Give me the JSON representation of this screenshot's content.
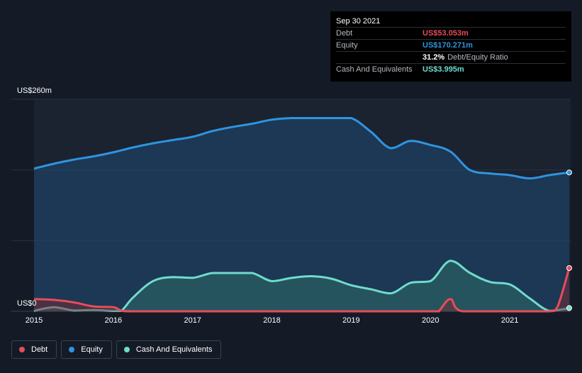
{
  "tooltip": {
    "date": "Sep 30 2021",
    "debt_label": "Debt",
    "debt_value": "US$53.053m",
    "equity_label": "Equity",
    "equity_value": "US$170.271m",
    "ratio_value": "31.2%",
    "ratio_label": "Debt/Equity Ratio",
    "cash_label": "Cash And Equivalents",
    "cash_value": "US$3.995m"
  },
  "legend": [
    {
      "label": "Debt",
      "color": "#e64d5a"
    },
    {
      "label": "Equity",
      "color": "#2f94e0"
    },
    {
      "label": "Cash And Equivalents",
      "color": "#6fdccc"
    }
  ],
  "chart_data": {
    "type": "area",
    "ylabels": {
      "top": "US$260m",
      "bottom": "US$0"
    },
    "ylim": [
      0,
      260
    ],
    "xlim": [
      2015.0,
      2021.75
    ],
    "xticks": [
      "2015",
      "2016",
      "2017",
      "2018",
      "2019",
      "2020",
      "2021"
    ],
    "grid": true,
    "legend_position": "bottom-left",
    "series": [
      {
        "name": "Equity",
        "color": "#2f94e0",
        "points": [
          [
            2015.0,
            175
          ],
          [
            2015.25,
            181
          ],
          [
            2015.5,
            186
          ],
          [
            2015.75,
            190
          ],
          [
            2016.0,
            195
          ],
          [
            2016.25,
            201
          ],
          [
            2016.5,
            206
          ],
          [
            2016.75,
            210
          ],
          [
            2017.0,
            214
          ],
          [
            2017.25,
            221
          ],
          [
            2017.5,
            226
          ],
          [
            2017.75,
            230
          ],
          [
            2018.0,
            235
          ],
          [
            2018.25,
            237
          ],
          [
            2018.5,
            237
          ],
          [
            2018.75,
            237
          ],
          [
            2019.0,
            237
          ],
          [
            2019.25,
            220
          ],
          [
            2019.5,
            200
          ],
          [
            2019.75,
            209
          ],
          [
            2020.0,
            204
          ],
          [
            2020.25,
            196
          ],
          [
            2020.5,
            173
          ],
          [
            2020.75,
            169
          ],
          [
            2021.0,
            167
          ],
          [
            2021.25,
            163
          ],
          [
            2021.5,
            167
          ],
          [
            2021.75,
            170.271
          ]
        ]
      },
      {
        "name": "Cash And Equivalents",
        "color": "#6fdccc",
        "points": [
          [
            2015.0,
            0.5
          ],
          [
            2015.25,
            5
          ],
          [
            2015.5,
            1
          ],
          [
            2015.75,
            1.5
          ],
          [
            2016.0,
            0.5
          ],
          [
            2016.1,
            0.5
          ],
          [
            2016.25,
            17
          ],
          [
            2016.5,
            37
          ],
          [
            2016.75,
            42
          ],
          [
            2017.0,
            41
          ],
          [
            2017.25,
            47
          ],
          [
            2017.5,
            47
          ],
          [
            2017.75,
            47
          ],
          [
            2018.0,
            37
          ],
          [
            2018.25,
            41
          ],
          [
            2018.5,
            43
          ],
          [
            2018.75,
            40
          ],
          [
            2019.0,
            32
          ],
          [
            2019.25,
            27
          ],
          [
            2019.5,
            22
          ],
          [
            2019.75,
            35
          ],
          [
            2020.0,
            37
          ],
          [
            2020.25,
            62
          ],
          [
            2020.5,
            47
          ],
          [
            2020.75,
            36
          ],
          [
            2021.0,
            33
          ],
          [
            2021.25,
            16
          ],
          [
            2021.5,
            0.5
          ],
          [
            2021.75,
            3.995
          ]
        ]
      },
      {
        "name": "Debt",
        "color": "#e64d5a",
        "points": [
          [
            2015.0,
            15
          ],
          [
            2015.25,
            14
          ],
          [
            2015.5,
            11
          ],
          [
            2015.75,
            6
          ],
          [
            2016.0,
            5
          ],
          [
            2016.1,
            1
          ],
          [
            2016.25,
            0
          ],
          [
            2017.0,
            0
          ],
          [
            2018.0,
            0
          ],
          [
            2019.0,
            0
          ],
          [
            2020.0,
            0
          ],
          [
            2020.1,
            0
          ],
          [
            2020.25,
            15
          ],
          [
            2020.4,
            0
          ],
          [
            2021.0,
            0
          ],
          [
            2021.5,
            0
          ],
          [
            2021.6,
            5
          ],
          [
            2021.75,
            53.053
          ]
        ]
      }
    ]
  }
}
